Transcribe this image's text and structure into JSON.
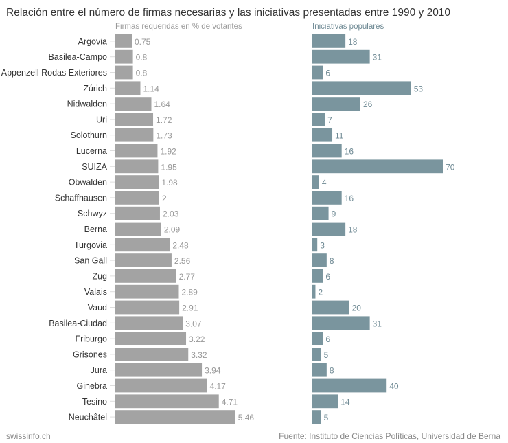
{
  "title": "Relación entre el número de firmas necesarias y las iniciativas presentadas entre 1990 y 2010",
  "footer": {
    "brand": "swissinfo.ch",
    "source": "Fuente: Instituto de Ciencias Políticas, Universidad de Berna"
  },
  "colors": {
    "left_bar": "#a3a3a3",
    "right_bar": "#7a959e"
  },
  "chart_data": [
    {
      "type": "bar",
      "orientation": "horizontal",
      "title": "Firmas requeridas en % de votantes",
      "categories": [
        "Argovia",
        "Basilea-Campo",
        "Appenzell Rodas Exteriores",
        "Zúrich",
        "Nidwalden",
        "Uri",
        "Solothurn",
        "Lucerna",
        "SUIZA",
        "Obwalden",
        "Schaffhausen",
        "Schwyz",
        "Berna",
        "Turgovia",
        "San Gall",
        "Zug",
        "Valais",
        "Vaud",
        "Basilea-Ciudad",
        "Friburgo",
        "Grisones",
        "Jura",
        "Ginebra",
        "Tesino",
        "Neuchâtel"
      ],
      "values": [
        0.75,
        0.8,
        0.8,
        1.14,
        1.64,
        1.72,
        1.73,
        1.92,
        1.95,
        1.98,
        2,
        2.03,
        2.09,
        2.48,
        2.56,
        2.77,
        2.89,
        2.91,
        3.07,
        3.22,
        3.32,
        3.94,
        4.17,
        4.71,
        5.46
      ],
      "labels": [
        "0.75",
        "0.8",
        "0.8",
        "1.14",
        "1.64",
        "1.72",
        "1.73",
        "1.92",
        "1.95",
        "1.98",
        "2",
        "2.03",
        "2.09",
        "2.48",
        "2.56",
        "2.77",
        "2.89",
        "2.91",
        "3.07",
        "3.22",
        "3.32",
        "3.94",
        "4.17",
        "4.71",
        "5.46"
      ],
      "xlim": [
        0,
        5.46
      ]
    },
    {
      "type": "bar",
      "orientation": "horizontal",
      "title": "Iniciativas populares",
      "categories": [
        "Argovia",
        "Basilea-Campo",
        "Appenzell Rodas Exteriores",
        "Zúrich",
        "Nidwalden",
        "Uri",
        "Solothurn",
        "Lucerna",
        "SUIZA",
        "Obwalden",
        "Schaffhausen",
        "Schwyz",
        "Berna",
        "Turgovia",
        "San Gall",
        "Zug",
        "Valais",
        "Vaud",
        "Basilea-Ciudad",
        "Friburgo",
        "Grisones",
        "Jura",
        "Ginebra",
        "Tesino",
        "Neuchâtel"
      ],
      "values": [
        18,
        31,
        6,
        53,
        26,
        7,
        11,
        16,
        70,
        4,
        16,
        9,
        18,
        3,
        8,
        6,
        2,
        20,
        31,
        6,
        5,
        8,
        40,
        14,
        5
      ],
      "labels": [
        "18",
        "31",
        "6",
        "53",
        "26",
        "7",
        "11",
        "16",
        "70",
        "4",
        "16",
        "9",
        "18",
        "3",
        "8",
        "6",
        "2",
        "20",
        "31",
        "6",
        "5",
        "8",
        "40",
        "14",
        "5"
      ],
      "xlim": [
        0,
        70
      ]
    }
  ]
}
